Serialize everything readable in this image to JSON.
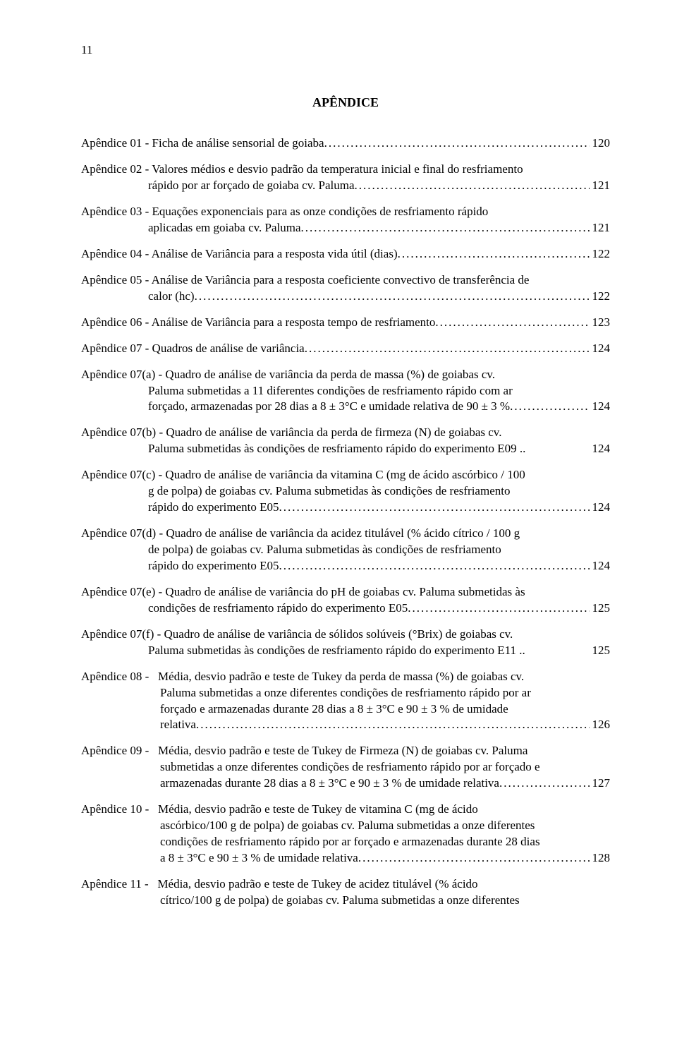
{
  "pageNumber": "11",
  "title": "APÊNDICE",
  "entries": [
    {
      "lines": [
        {
          "text": "Apêndice 01 - Ficha de análise sensorial de goiaba",
          "page": "120",
          "leader": true
        }
      ]
    },
    {
      "lines": [
        {
          "text": "Apêndice 02 - Valores médios e desvio padrão da temperatura inicial e final do resfriamento",
          "leader": false,
          "cls": "no-trail"
        },
        {
          "text": "rápido por ar forçado de goiaba cv. Paluma",
          "page": "121",
          "leader": true,
          "cls": "continuation"
        }
      ]
    },
    {
      "lines": [
        {
          "text": "Apêndice 03 - Equações exponenciais para as onze condições de resfriamento rápido",
          "leader": false,
          "cls": "no-trail"
        },
        {
          "text": "aplicadas em goiaba cv. Paluma",
          "page": "121",
          "leader": true,
          "cls": "continuation"
        }
      ]
    },
    {
      "lines": [
        {
          "text": "Apêndice 04 - Análise de Variância para a resposta vida útil (dias)",
          "page": "122",
          "leader": true
        }
      ]
    },
    {
      "lines": [
        {
          "text": "Apêndice 05 - Análise de Variância para a resposta coeficiente convectivo de transferência de",
          "leader": false,
          "cls": "no-trail"
        },
        {
          "text": "calor (hc)",
          "page": "122",
          "leader": true,
          "cls": "continuation"
        }
      ]
    },
    {
      "lines": [
        {
          "text": "Apêndice 06 - Análise de Variância para a resposta tempo de resfriamento",
          "page": "123",
          "leader": true
        }
      ]
    },
    {
      "lines": [
        {
          "text": "Apêndice 07 - Quadros de análise de variância",
          "page": "124",
          "leader": true
        }
      ]
    },
    {
      "lines": [
        {
          "text": "Apêndice 07(a) - Quadro de análise de variância da perda de massa (%) de goiabas cv.",
          "leader": false,
          "cls": "no-trail"
        },
        {
          "text": "Paluma submetidas a 11 diferentes condições de resfriamento rápido com ar",
          "leader": false,
          "cls": "continuation no-trail"
        },
        {
          "text": "forçado, armazenadas por 28 dias a 8 ± 3°C e umidade relativa de 90 ± 3 %",
          "page": "124",
          "leader": true,
          "cls": "continuation"
        }
      ]
    },
    {
      "lines": [
        {
          "text": "Apêndice 07(b) - Quadro de análise de variância da perda de firmeza (N) de goiabas cv.",
          "leader": false,
          "cls": "no-trail"
        },
        {
          "text": "Paluma submetidas às condições de resfriamento rápido do experimento E09",
          "page": "124",
          "leader": true,
          "leaderShort": true,
          "cls": "continuation"
        }
      ]
    },
    {
      "lines": [
        {
          "text": "Apêndice 07(c) - Quadro de análise de variância da vitamina C (mg de ácido ascórbico / 100",
          "leader": false,
          "cls": "no-trail"
        },
        {
          "text": "g de polpa) de goiabas cv. Paluma submetidas às condições de resfriamento",
          "leader": false,
          "cls": "continuation no-trail"
        },
        {
          "text": "rápido do experimento E05",
          "page": "124",
          "leader": true,
          "cls": "continuation"
        }
      ]
    },
    {
      "lines": [
        {
          "text": "Apêndice 07(d) - Quadro de análise de variância da acidez titulável (% ácido cítrico / 100 g",
          "leader": false,
          "cls": "no-trail"
        },
        {
          "text": "de polpa) de goiabas cv. Paluma submetidas às condições de resfriamento",
          "leader": false,
          "cls": "continuation no-trail"
        },
        {
          "text": "rápido do experimento E05",
          "page": "124",
          "leader": true,
          "cls": "continuation"
        }
      ]
    },
    {
      "lines": [
        {
          "text": "Apêndice 07(e) - Quadro de análise de variância do pH de goiabas cv. Paluma submetidas às",
          "leader": false,
          "cls": "no-trail"
        },
        {
          "text": "condições de resfriamento rápido do experimento E05",
          "page": "125",
          "leader": true,
          "cls": "continuation"
        }
      ]
    },
    {
      "lines": [
        {
          "text": "Apêndice 07(f) - Quadro de análise de variância de sólidos solúveis (°Brix) de goiabas cv.",
          "leader": false,
          "cls": "no-trail"
        },
        {
          "text": "Paluma submetidas às condições de resfriamento rápido do experimento E11",
          "page": "125",
          "leader": true,
          "leaderShort": true,
          "cls": "continuation"
        }
      ]
    },
    {
      "lines": [
        {
          "text": "Apêndice 08 -   Média, desvio padrão e teste de Tukey da perda de massa (%) de goiabas cv.",
          "leader": false,
          "cls": "no-trail"
        },
        {
          "text": "Paluma submetidas a onze diferentes condições de resfriamento rápido por ar",
          "leader": false,
          "cls": "continuation-b no-trail"
        },
        {
          "text": "forçado e armazenadas durante 28 dias a 8 ± 3°C e 90 ± 3 % de umidade",
          "leader": false,
          "cls": "continuation-b no-trail"
        },
        {
          "text": "relativa",
          "page": "126",
          "leader": true,
          "cls": "continuation-b"
        }
      ]
    },
    {
      "lines": [
        {
          "text": "Apêndice 09 -   Média, desvio padrão e teste de Tukey de Firmeza (N) de goiabas cv. Paluma",
          "leader": false,
          "cls": "no-trail"
        },
        {
          "text": "submetidas a onze diferentes condições de resfriamento rápido por ar forçado e",
          "leader": false,
          "cls": "continuation-b no-trail"
        },
        {
          "text": "armazenadas durante 28 dias a 8 ± 3°C e 90 ± 3 % de umidade relativa",
          "page": "127",
          "leader": true,
          "cls": "continuation-b"
        }
      ]
    },
    {
      "lines": [
        {
          "text": "Apêndice 10 -   Média, desvio padrão e teste de Tukey de vitamina C (mg de ácido",
          "leader": false,
          "cls": "no-trail"
        },
        {
          "text": "ascórbico/100 g de polpa) de goiabas cv. Paluma submetidas a onze diferentes",
          "leader": false,
          "cls": "continuation-b no-trail"
        },
        {
          "text": "condições de resfriamento rápido por ar forçado e armazenadas durante 28 dias",
          "leader": false,
          "cls": "continuation-b no-trail"
        },
        {
          "text": "a 8 ± 3°C e 90 ± 3 % de umidade relativa",
          "page": "128",
          "leader": true,
          "cls": "continuation-b"
        }
      ]
    },
    {
      "lines": [
        {
          "text": "Apêndice 11 -   Média, desvio padrão e teste de Tukey de acidez titulável (% ácido",
          "leader": false,
          "cls": "no-trail"
        },
        {
          "text": "cítrico/100 g de polpa) de goiabas cv. Paluma submetidas a onze diferentes",
          "leader": false,
          "cls": "continuation-b no-trail"
        }
      ]
    }
  ]
}
